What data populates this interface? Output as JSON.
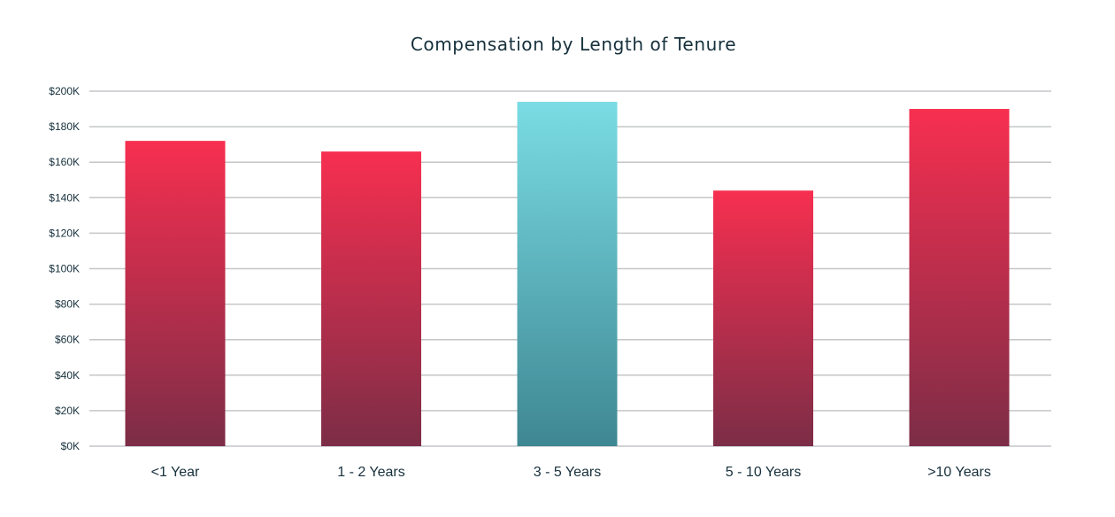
{
  "chart_data": {
    "type": "bar",
    "title": "Compensation by Length of Tenure",
    "xlabel": "",
    "ylabel": "",
    "categories": [
      "<1 Year",
      "1 - 2 Years",
      "3 - 5 Years",
      "5 - 10 Years",
      ">10 Years"
    ],
    "values": [
      172000,
      166000,
      194000,
      144000,
      190000
    ],
    "highlight_index": 2,
    "ylim": [
      0,
      200000
    ],
    "yticks": [
      0,
      20000,
      40000,
      60000,
      80000,
      100000,
      120000,
      140000,
      160000,
      180000,
      200000
    ],
    "ytick_labels": [
      "$0K",
      "$20K",
      "$40K",
      "$60K",
      "$80K",
      "$100K",
      "$120K",
      "$140K",
      "$160K",
      "$180K",
      "$200K"
    ],
    "grid": true,
    "colors": {
      "bar_top": "#f72f50",
      "bar_bottom": "#7c2d47",
      "highlight_top": "#7adce4",
      "highlight_bottom": "#3e8792",
      "grid": "#c4c6c8",
      "text": "#16303c"
    }
  }
}
